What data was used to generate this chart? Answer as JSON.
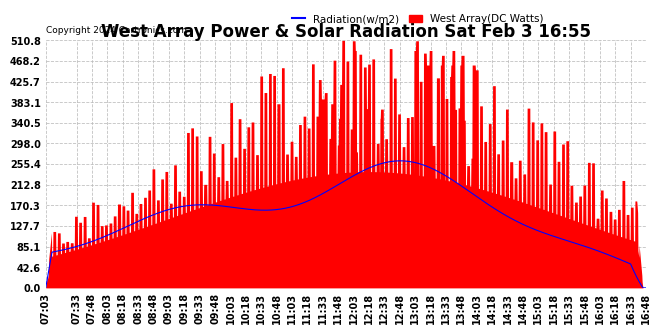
{
  "title": "West Array Power & Solar Radiation Sat Feb 3 16:55",
  "copyright": "Copyright 2024 Cartronics.com",
  "legend_radiation": "Radiation(w/m2)",
  "legend_west": "West Array(DC Watts)",
  "ylabel_values": [
    510.8,
    468.2,
    425.7,
    383.1,
    340.5,
    298.0,
    255.4,
    212.8,
    170.3,
    127.7,
    85.1,
    42.6,
    0.0
  ],
  "ymax": 510.8,
  "ymin": 0.0,
  "bg_color": "#ffffff",
  "plot_bg_color": "#ffffff",
  "radiation_color": "#0000ff",
  "west_color": "#ff0000",
  "west_fill_color": "#ff0000",
  "grid_color": "#bbbbbb",
  "title_fontsize": 12,
  "tick_fontsize": 7,
  "x_labels": [
    "07:03",
    "07:33",
    "07:48",
    "08:03",
    "08:18",
    "08:33",
    "08:48",
    "09:03",
    "09:18",
    "09:33",
    "09:48",
    "10:03",
    "10:18",
    "10:33",
    "10:48",
    "11:03",
    "11:18",
    "11:33",
    "11:48",
    "12:03",
    "12:18",
    "12:33",
    "12:48",
    "13:03",
    "13:18",
    "13:33",
    "13:48",
    "14:03",
    "14:18",
    "14:33",
    "14:48",
    "15:03",
    "15:18",
    "15:33",
    "15:48",
    "16:03",
    "16:18",
    "16:33",
    "16:48"
  ]
}
